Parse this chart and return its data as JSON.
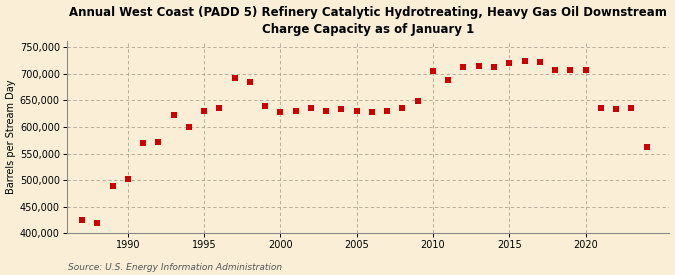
{
  "title": "Annual West Coast (PADD 5) Refinery Catalytic Hydrotreating, Heavy Gas Oil Downstream\nCharge Capacity as of January 1",
  "ylabel": "Barrels per Stream Day",
  "source": "Source: U.S. Energy Information Administration",
  "background_color": "#faefd6",
  "marker_color": "#cc0000",
  "years": [
    1987,
    1988,
    1989,
    1990,
    1991,
    1992,
    1993,
    1994,
    1995,
    1996,
    1997,
    1998,
    1999,
    2000,
    2001,
    2002,
    2003,
    2004,
    2005,
    2006,
    2007,
    2008,
    2009,
    2010,
    2011,
    2012,
    2013,
    2014,
    2015,
    2016,
    2017,
    2018,
    2019,
    2020,
    2021,
    2022,
    2023,
    2024
  ],
  "values": [
    425000,
    420000,
    488000,
    502000,
    570000,
    572000,
    622000,
    600000,
    630000,
    635000,
    693000,
    685000,
    640000,
    628000,
    630000,
    635000,
    630000,
    633000,
    630000,
    628000,
    630000,
    635000,
    648000,
    706000,
    688000,
    712000,
    715000,
    712000,
    720000,
    725000,
    722000,
    707000,
    707000,
    707000,
    635000,
    633000,
    635000,
    563000
  ],
  "ylim": [
    400000,
    762000
  ],
  "yticks": [
    400000,
    450000,
    500000,
    550000,
    600000,
    650000,
    700000,
    750000
  ],
  "xlim": [
    1986.0,
    2025.5
  ],
  "xticks": [
    1990,
    1995,
    2000,
    2005,
    2010,
    2015,
    2020
  ]
}
